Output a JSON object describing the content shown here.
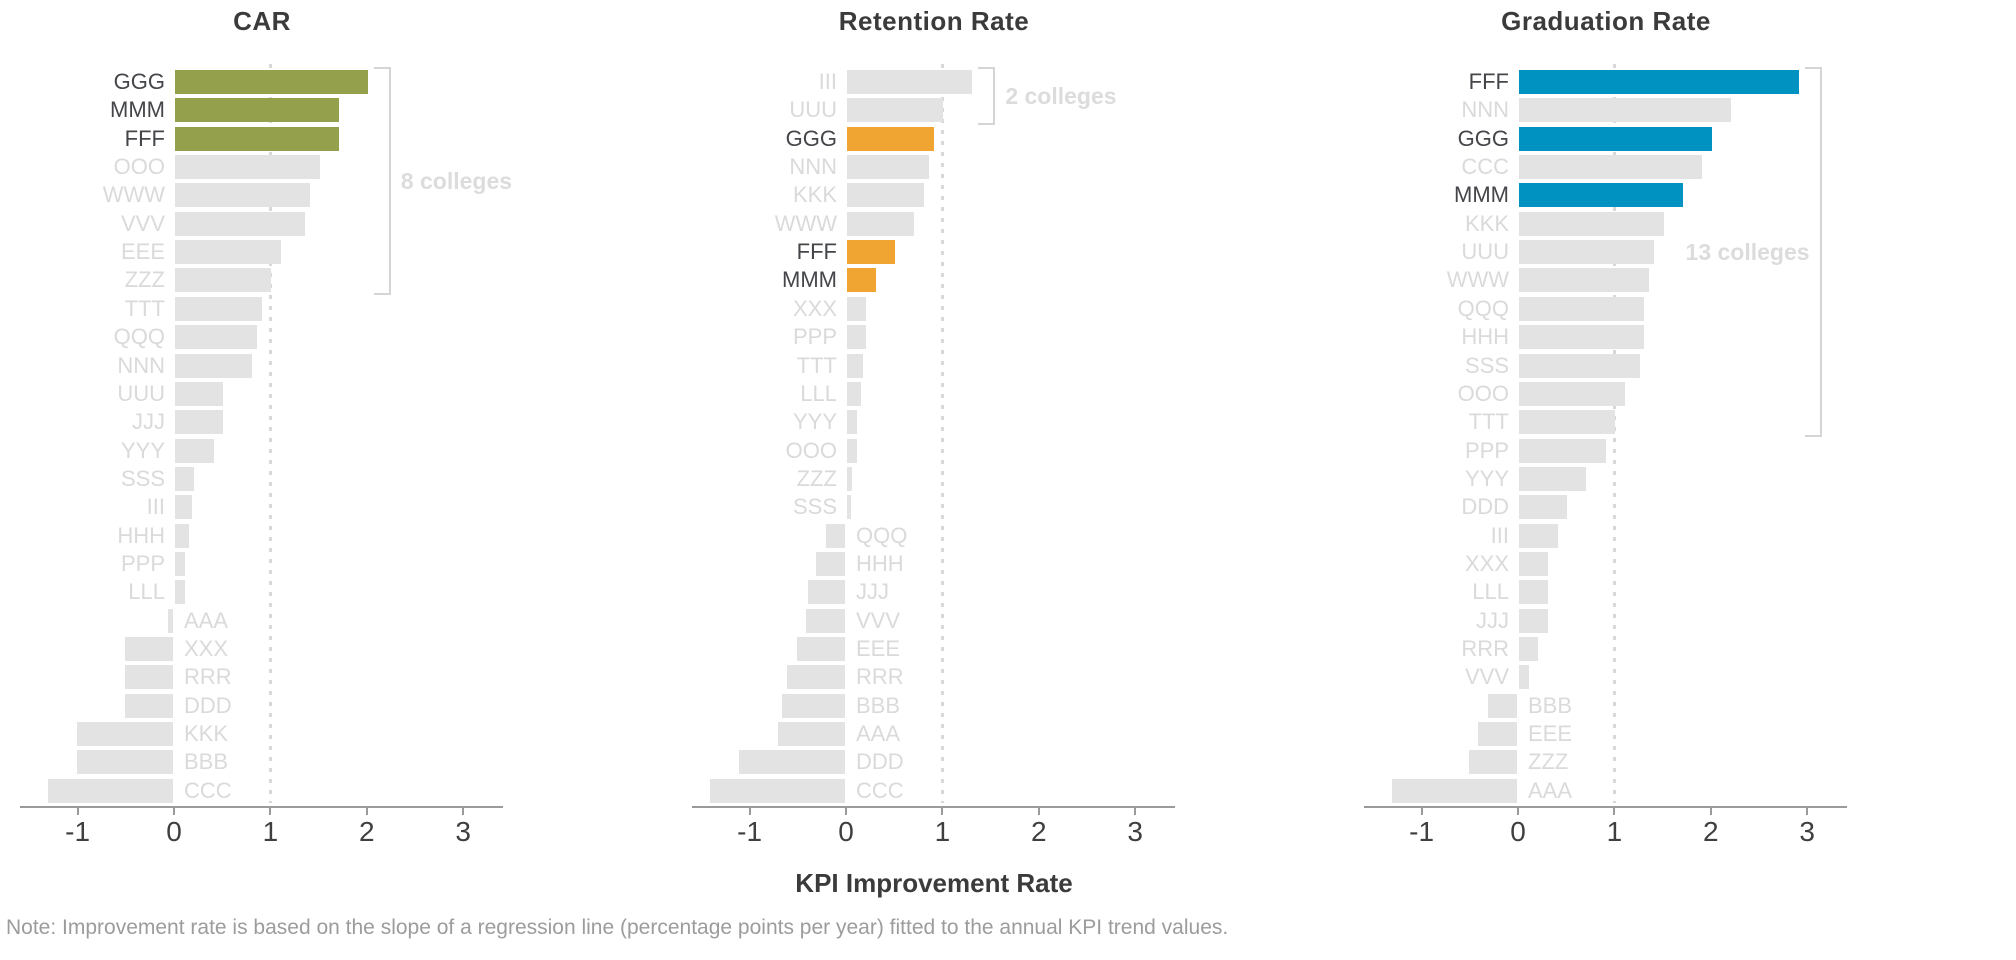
{
  "figure": {
    "xlabel": "KPI Improvement Rate",
    "note": "Note: Improvement rate is based on the slope of a regression line (percentage points per year) fitted to the annual KPI trend values.",
    "axis_ticks": [
      -1,
      0,
      1,
      2,
      3
    ]
  },
  "colors": {
    "car_highlight": "#94A04B",
    "retention_highlight": "#F0A432",
    "graduation_highlight": "#0092C1",
    "default_bar": "#E3E3E3",
    "axis": "#9A9A9A",
    "reference_line": "#D8D8D8",
    "bracket": "#D5D5D5"
  },
  "chart_data": [
    {
      "type": "bar",
      "orientation": "horizontal",
      "title": "CAR",
      "xlim": [
        -1.6,
        3.4
      ],
      "ref_line_x": 1,
      "highlight_color": "#94A04B",
      "annotation": {
        "label": "8 colleges",
        "from_index": 0,
        "to_index": 7,
        "label_side": "right"
      },
      "bars": [
        {
          "label": "GGG",
          "value": 2.0,
          "highlighted": true
        },
        {
          "label": "MMM",
          "value": 1.7,
          "highlighted": true
        },
        {
          "label": "FFF",
          "value": 1.7,
          "highlighted": true
        },
        {
          "label": "OOO",
          "value": 1.5,
          "highlighted": false
        },
        {
          "label": "WWW",
          "value": 1.4,
          "highlighted": false
        },
        {
          "label": "VVV",
          "value": 1.35,
          "highlighted": false
        },
        {
          "label": "EEE",
          "value": 1.1,
          "highlighted": false
        },
        {
          "label": "ZZZ",
          "value": 1.0,
          "highlighted": false
        },
        {
          "label": "TTT",
          "value": 0.9,
          "highlighted": false
        },
        {
          "label": "QQQ",
          "value": 0.85,
          "highlighted": false
        },
        {
          "label": "NNN",
          "value": 0.8,
          "highlighted": false
        },
        {
          "label": "UUU",
          "value": 0.5,
          "highlighted": false
        },
        {
          "label": "JJJ",
          "value": 0.5,
          "highlighted": false
        },
        {
          "label": "YYY",
          "value": 0.4,
          "highlighted": false
        },
        {
          "label": "SSS",
          "value": 0.2,
          "highlighted": false
        },
        {
          "label": "III",
          "value": 0.18,
          "highlighted": false
        },
        {
          "label": "HHH",
          "value": 0.15,
          "highlighted": false
        },
        {
          "label": "PPP",
          "value": 0.1,
          "highlighted": false
        },
        {
          "label": "LLL",
          "value": 0.1,
          "highlighted": false
        },
        {
          "label": "AAA",
          "value": -0.05,
          "highlighted": false
        },
        {
          "label": "XXX",
          "value": -0.5,
          "highlighted": false
        },
        {
          "label": "RRR",
          "value": -0.5,
          "highlighted": false
        },
        {
          "label": "DDD",
          "value": -0.5,
          "highlighted": false
        },
        {
          "label": "KKK",
          "value": -1.0,
          "highlighted": false
        },
        {
          "label": "BBB",
          "value": -1.0,
          "highlighted": false
        },
        {
          "label": "CCC",
          "value": -1.3,
          "highlighted": false
        }
      ]
    },
    {
      "type": "bar",
      "orientation": "horizontal",
      "title": "Retention Rate",
      "xlim": [
        -1.6,
        3.4
      ],
      "ref_line_x": 1,
      "highlight_color": "#F0A432",
      "annotation": {
        "label": "2 colleges",
        "from_index": 0,
        "to_index": 1,
        "label_side": "right"
      },
      "bars": [
        {
          "label": "III",
          "value": 1.3,
          "highlighted": false
        },
        {
          "label": "UUU",
          "value": 1.0,
          "highlighted": false
        },
        {
          "label": "GGG",
          "value": 0.9,
          "highlighted": true
        },
        {
          "label": "NNN",
          "value": 0.85,
          "highlighted": false
        },
        {
          "label": "KKK",
          "value": 0.8,
          "highlighted": false
        },
        {
          "label": "WWW",
          "value": 0.7,
          "highlighted": false
        },
        {
          "label": "FFF",
          "value": 0.5,
          "highlighted": true
        },
        {
          "label": "MMM",
          "value": 0.3,
          "highlighted": true
        },
        {
          "label": "XXX",
          "value": 0.2,
          "highlighted": false
        },
        {
          "label": "PPP",
          "value": 0.2,
          "highlighted": false
        },
        {
          "label": "TTT",
          "value": 0.17,
          "highlighted": false
        },
        {
          "label": "LLL",
          "value": 0.15,
          "highlighted": false
        },
        {
          "label": "YYY",
          "value": 0.1,
          "highlighted": false
        },
        {
          "label": "OOO",
          "value": 0.1,
          "highlighted": false
        },
        {
          "label": "ZZZ",
          "value": 0.05,
          "highlighted": false
        },
        {
          "label": "SSS",
          "value": 0.04,
          "highlighted": false
        },
        {
          "label": "QQQ",
          "value": -0.2,
          "highlighted": false
        },
        {
          "label": "HHH",
          "value": -0.3,
          "highlighted": false
        },
        {
          "label": "JJJ",
          "value": -0.38,
          "highlighted": false
        },
        {
          "label": "VVV",
          "value": -0.4,
          "highlighted": false
        },
        {
          "label": "EEE",
          "value": -0.5,
          "highlighted": false
        },
        {
          "label": "RRR",
          "value": -0.6,
          "highlighted": false
        },
        {
          "label": "BBB",
          "value": -0.65,
          "highlighted": false
        },
        {
          "label": "AAA",
          "value": -0.7,
          "highlighted": false
        },
        {
          "label": "DDD",
          "value": -1.1,
          "highlighted": false
        },
        {
          "label": "CCC",
          "value": -1.4,
          "highlighted": false
        }
      ]
    },
    {
      "type": "bar",
      "orientation": "horizontal",
      "title": "Graduation Rate",
      "xlim": [
        -1.6,
        3.4
      ],
      "ref_line_x": 1,
      "highlight_color": "#0092C1",
      "annotation": {
        "label": "13 colleges",
        "from_index": 0,
        "to_index": 12,
        "label_side": "left"
      },
      "bars": [
        {
          "label": "FFF",
          "value": 2.9,
          "highlighted": true
        },
        {
          "label": "NNN",
          "value": 2.2,
          "highlighted": false
        },
        {
          "label": "GGG",
          "value": 2.0,
          "highlighted": true
        },
        {
          "label": "CCC",
          "value": 1.9,
          "highlighted": false
        },
        {
          "label": "MMM",
          "value": 1.7,
          "highlighted": true
        },
        {
          "label": "KKK",
          "value": 1.5,
          "highlighted": false
        },
        {
          "label": "UUU",
          "value": 1.4,
          "highlighted": false
        },
        {
          "label": "WWW",
          "value": 1.35,
          "highlighted": false
        },
        {
          "label": "QQQ",
          "value": 1.3,
          "highlighted": false
        },
        {
          "label": "HHH",
          "value": 1.3,
          "highlighted": false
        },
        {
          "label": "SSS",
          "value": 1.25,
          "highlighted": false
        },
        {
          "label": "OOO",
          "value": 1.1,
          "highlighted": false
        },
        {
          "label": "TTT",
          "value": 1.0,
          "highlighted": false
        },
        {
          "label": "PPP",
          "value": 0.9,
          "highlighted": false
        },
        {
          "label": "YYY",
          "value": 0.7,
          "highlighted": false
        },
        {
          "label": "DDD",
          "value": 0.5,
          "highlighted": false
        },
        {
          "label": "III",
          "value": 0.4,
          "highlighted": false
        },
        {
          "label": "XXX",
          "value": 0.3,
          "highlighted": false
        },
        {
          "label": "LLL",
          "value": 0.3,
          "highlighted": false
        },
        {
          "label": "JJJ",
          "value": 0.3,
          "highlighted": false
        },
        {
          "label": "RRR",
          "value": 0.2,
          "highlighted": false
        },
        {
          "label": "VVV",
          "value": 0.1,
          "highlighted": false
        },
        {
          "label": "BBB",
          "value": -0.3,
          "highlighted": false
        },
        {
          "label": "EEE",
          "value": -0.4,
          "highlighted": false
        },
        {
          "label": "ZZZ",
          "value": -0.5,
          "highlighted": false
        },
        {
          "label": "AAA",
          "value": -1.3,
          "highlighted": false
        }
      ]
    }
  ]
}
